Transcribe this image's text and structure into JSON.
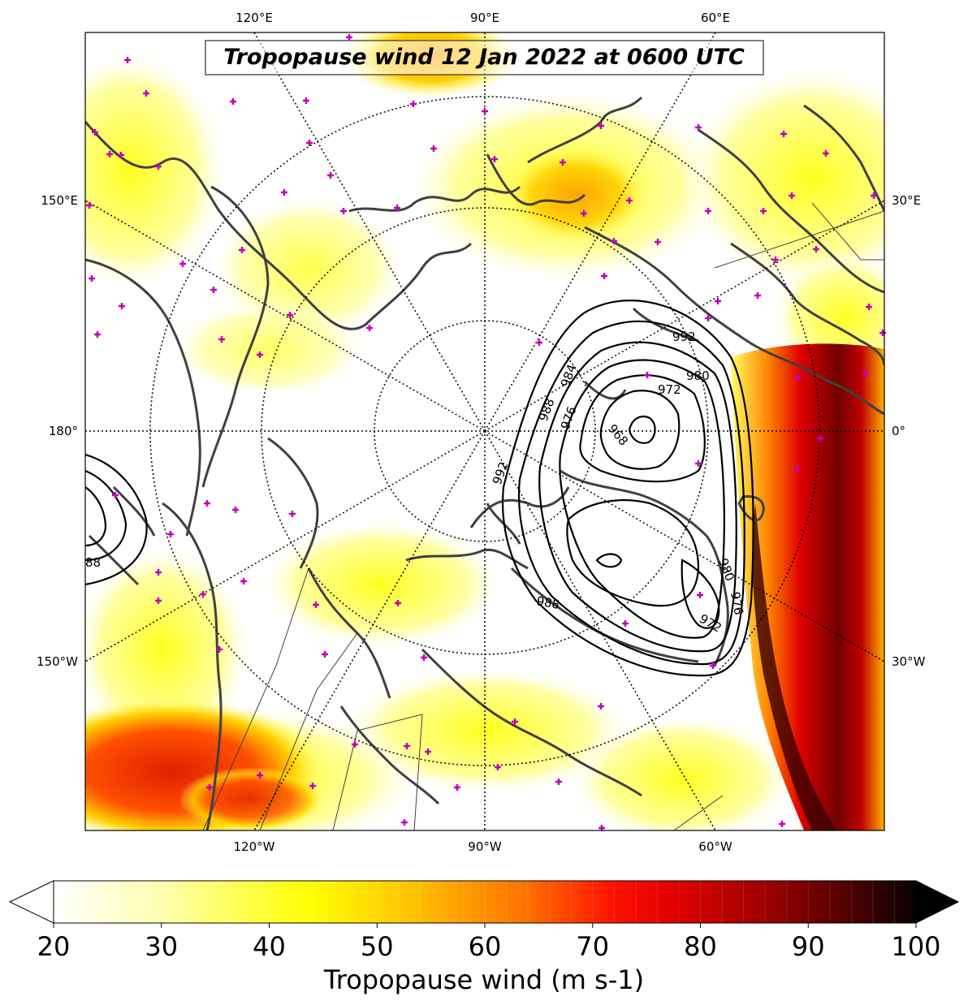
{
  "title": "Tropopause wind 12 Jan 2022 at 0600 UTC",
  "longitude_labels": {
    "top": [
      "120°E",
      "90°E",
      "60°E"
    ],
    "bottom": [
      "120°W",
      "90°W",
      "60°W"
    ]
  },
  "latitude_labels": {
    "left": [
      "150°E",
      "180°",
      "150°W"
    ],
    "right": [
      "30°E",
      "0°",
      "30°W"
    ]
  },
  "colorbar": {
    "label": "Tropopause wind (m s-1)",
    "ticks": [
      "20",
      "30",
      "40",
      "50",
      "60",
      "70",
      "80",
      "90",
      "100"
    ],
    "min": 20,
    "max": 100,
    "extend": "both",
    "colormap": "hot_r",
    "colors": [
      "#ffffff",
      "#ffff00",
      "#ffa500",
      "#ff0000",
      "#8b0000",
      "#000000"
    ]
  },
  "contour_labels": [
    "992",
    "988",
    "984",
    "980",
    "976",
    "972",
    "968",
    "988",
    "980",
    "976",
    "972",
    "992",
    "88"
  ],
  "colors": {
    "coastline": "#404040",
    "contour": "#000000",
    "station_marker": "#c000c0",
    "graticule": "#000000"
  }
}
